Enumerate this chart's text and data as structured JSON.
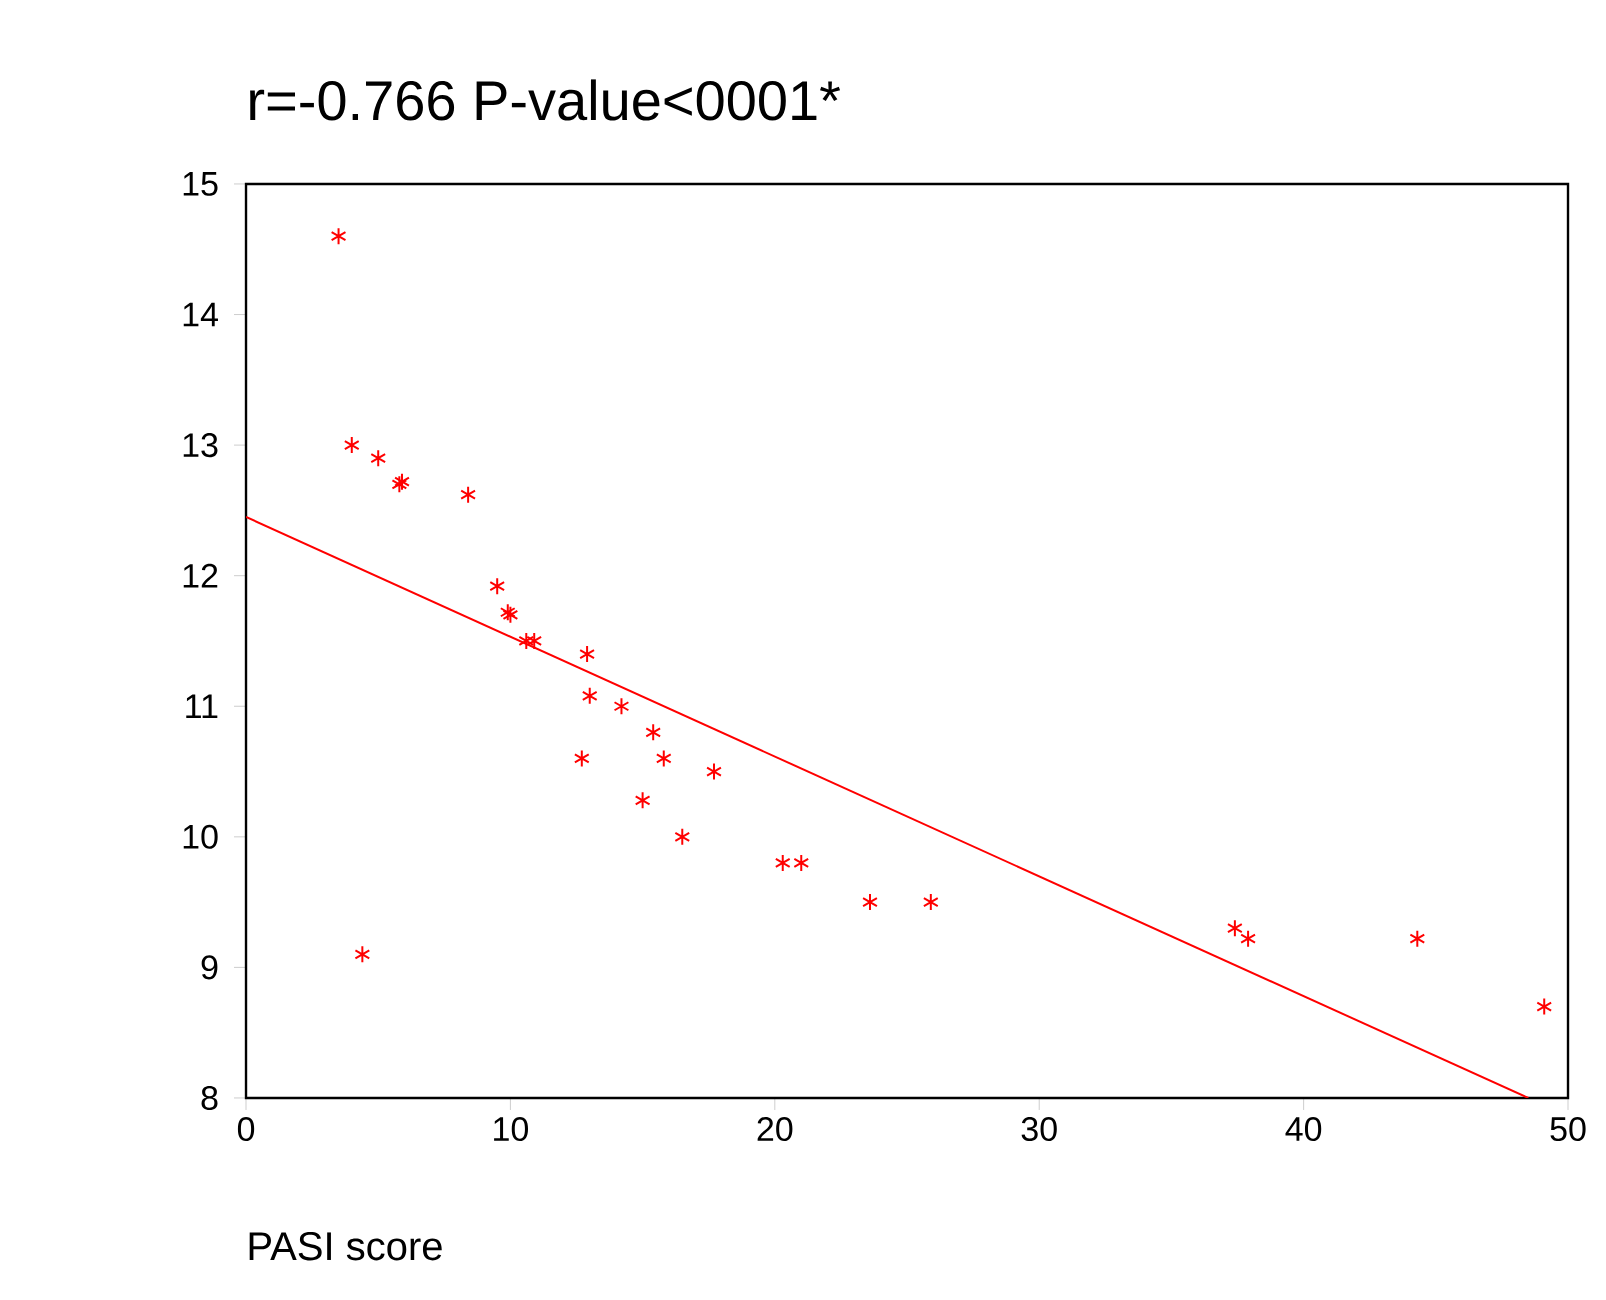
{
  "chart_data": {
    "type": "scatter",
    "title": "r=-0.766      P-value<0001*",
    "xlabel": "PASI score",
    "xlim": [
      0,
      50
    ],
    "ylim": [
      8,
      15
    ],
    "xticks": [
      0,
      10,
      20,
      30,
      40,
      50
    ],
    "yticks": [
      8,
      9,
      10,
      11,
      12,
      13,
      14,
      15
    ],
    "series": [
      {
        "marker": "cross",
        "color": "#ff0000",
        "x": [
          3.5,
          4.0,
          5.0,
          5.8,
          5.9,
          8.4,
          9.5,
          9.9,
          10.0,
          10.6,
          10.9,
          12.9,
          13.0,
          12.7,
          14.2,
          15.4,
          15.8,
          15.0,
          16.5,
          17.7,
          20.3,
          21.0,
          23.6,
          25.9,
          37.4,
          37.9,
          44.3,
          49.1,
          4.4
        ],
        "values": [
          14.6,
          13.0,
          12.9,
          12.7,
          12.72,
          12.62,
          11.92,
          11.72,
          11.7,
          11.5,
          11.5,
          11.4,
          11.08,
          10.6,
          11.0,
          10.8,
          10.6,
          10.28,
          10.0,
          10.5,
          9.8,
          9.8,
          9.5,
          9.5,
          9.3,
          9.22,
          9.22,
          8.7,
          9.1
        ]
      },
      {
        "type": "line",
        "color": "#ff0000",
        "x": [
          0,
          48.5
        ],
        "values": [
          12.45,
          8.0
        ]
      }
    ]
  }
}
